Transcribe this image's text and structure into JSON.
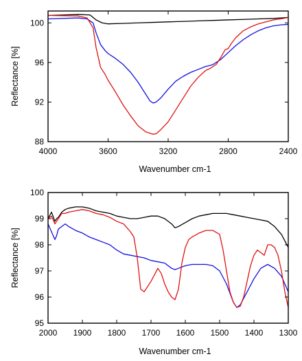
{
  "colors": {
    "black": "#000000",
    "blue": "#1010e0",
    "red": "#e01010"
  },
  "chart_data": [
    {
      "type": "line",
      "title": "",
      "xlabel": "Wavenumber cm-1",
      "ylabel": "Reflectance [%]",
      "xlim": [
        4000,
        2400
      ],
      "ylim": [
        88,
        101.2
      ],
      "x_reversed": true,
      "xticks": [
        4000,
        3600,
        3200,
        2800,
        2400
      ],
      "xtick_labels": [
        "4000",
        "3600",
        "3200",
        "2800",
        "2400"
      ],
      "yticks": [
        88,
        92,
        96,
        100
      ],
      "ytick_labels": [
        "88",
        "92",
        "96",
        "100"
      ],
      "grid": false,
      "legend": "none",
      "series": [
        {
          "color": "#000000",
          "x": [
            4000,
            3800,
            3720,
            3680,
            3640,
            3600,
            3500,
            3400,
            3300,
            3200,
            3100,
            3000,
            2900,
            2800,
            2700,
            2600,
            2500,
            2400
          ],
          "y": [
            100.75,
            100.85,
            100.8,
            100.3,
            100.0,
            99.9,
            99.95,
            100.0,
            100.05,
            100.1,
            100.15,
            100.2,
            100.25,
            100.3,
            100.35,
            100.4,
            100.45,
            100.55
          ]
        },
        {
          "color": "#1010e0",
          "x": [
            4000,
            3800,
            3740,
            3700,
            3680,
            3650,
            3620,
            3600,
            3550,
            3500,
            3450,
            3400,
            3350,
            3320,
            3300,
            3280,
            3250,
            3200,
            3150,
            3100,
            3050,
            3000,
            2950,
            2920,
            2900,
            2880,
            2850,
            2800,
            2750,
            2700,
            2650,
            2600,
            2550,
            2500,
            2450,
            2400
          ],
          "y": [
            100.4,
            100.5,
            100.4,
            100.0,
            99.0,
            97.8,
            97.2,
            96.9,
            96.4,
            95.8,
            95.0,
            94.0,
            92.8,
            92.1,
            91.9,
            92.0,
            92.4,
            93.3,
            94.1,
            94.6,
            95.0,
            95.3,
            95.6,
            95.7,
            95.8,
            96.0,
            96.3,
            97.0,
            97.7,
            98.3,
            98.8,
            99.2,
            99.5,
            99.7,
            99.8,
            99.85
          ]
        },
        {
          "color": "#e01010",
          "x": [
            4000,
            3800,
            3740,
            3700,
            3680,
            3650,
            3620,
            3600,
            3550,
            3500,
            3450,
            3400,
            3350,
            3300,
            3280,
            3250,
            3200,
            3150,
            3100,
            3050,
            3000,
            2950,
            2920,
            2900,
            2880,
            2850,
            2820,
            2800,
            2780,
            2750,
            2700,
            2650,
            2600,
            2550,
            2500,
            2450,
            2400
          ],
          "y": [
            100.75,
            100.7,
            100.5,
            99.5,
            97.5,
            95.5,
            94.8,
            94.2,
            93.0,
            91.7,
            90.6,
            89.6,
            89.0,
            88.75,
            88.8,
            89.2,
            90.0,
            91.2,
            92.4,
            93.6,
            94.5,
            95.2,
            95.4,
            95.6,
            95.8,
            96.5,
            97.3,
            97.4,
            97.9,
            98.5,
            99.2,
            99.6,
            99.9,
            100.1,
            100.3,
            100.4,
            100.55
          ]
        }
      ]
    },
    {
      "type": "line",
      "title": "",
      "xlabel": "Wavenumber cm-1",
      "ylabel": "Reflectance [%]",
      "xlim": [
        2000,
        1300
      ],
      "ylim": [
        95,
        100
      ],
      "x_reversed": true,
      "xticks": [
        2000,
        1900,
        1800,
        1700,
        1600,
        1500,
        1400,
        1300
      ],
      "xtick_labels": [
        "2000",
        "1900",
        "1800",
        "1700",
        "1600",
        "1500",
        "1400",
        "1300"
      ],
      "yticks": [
        95,
        96,
        97,
        98,
        99,
        100
      ],
      "ytick_labels": [
        "95",
        "96",
        "97",
        "98",
        "99",
        "100"
      ],
      "grid": false,
      "legend": "none",
      "series": [
        {
          "color": "#000000",
          "x": [
            2000,
            1990,
            1980,
            1975,
            1970,
            1960,
            1950,
            1940,
            1920,
            1900,
            1880,
            1860,
            1840,
            1820,
            1800,
            1780,
            1760,
            1740,
            1720,
            1700,
            1680,
            1660,
            1640,
            1630,
            1620,
            1600,
            1580,
            1560,
            1540,
            1520,
            1500,
            1480,
            1460,
            1440,
            1420,
            1400,
            1380,
            1360,
            1340,
            1320,
            1300
          ],
          "y": [
            99.0,
            99.25,
            98.9,
            99.0,
            99.05,
            99.25,
            99.35,
            99.4,
            99.45,
            99.45,
            99.4,
            99.3,
            99.25,
            99.2,
            99.1,
            99.05,
            99.0,
            99.0,
            99.05,
            99.1,
            99.1,
            99.0,
            98.8,
            98.65,
            98.7,
            98.85,
            99.0,
            99.1,
            99.15,
            99.2,
            99.2,
            99.2,
            99.15,
            99.1,
            99.05,
            99.0,
            98.95,
            98.9,
            98.7,
            98.4,
            97.9
          ]
        },
        {
          "color": "#1010e0",
          "x": [
            2000,
            1990,
            1980,
            1975,
            1970,
            1960,
            1950,
            1940,
            1920,
            1900,
            1880,
            1860,
            1840,
            1820,
            1800,
            1780,
            1760,
            1740,
            1720,
            1700,
            1680,
            1660,
            1640,
            1630,
            1620,
            1600,
            1580,
            1560,
            1540,
            1520,
            1500,
            1480,
            1460,
            1450,
            1440,
            1420,
            1400,
            1380,
            1360,
            1340,
            1320,
            1300
          ],
          "y": [
            98.8,
            98.5,
            98.2,
            98.35,
            98.6,
            98.7,
            98.8,
            98.7,
            98.55,
            98.45,
            98.3,
            98.2,
            98.1,
            98.0,
            97.8,
            97.65,
            97.6,
            97.55,
            97.5,
            97.4,
            97.35,
            97.3,
            97.1,
            97.05,
            97.1,
            97.2,
            97.25,
            97.25,
            97.25,
            97.2,
            97.0,
            96.5,
            95.8,
            95.6,
            95.7,
            96.2,
            96.7,
            97.1,
            97.25,
            97.1,
            96.8,
            96.2
          ]
        },
        {
          "color": "#e01010",
          "x": [
            2000,
            1990,
            1980,
            1975,
            1970,
            1960,
            1950,
            1940,
            1920,
            1900,
            1880,
            1860,
            1840,
            1820,
            1800,
            1780,
            1760,
            1750,
            1740,
            1730,
            1720,
            1700,
            1680,
            1670,
            1660,
            1650,
            1640,
            1630,
            1620,
            1610,
            1600,
            1590,
            1580,
            1560,
            1540,
            1520,
            1500,
            1490,
            1480,
            1470,
            1460,
            1450,
            1440,
            1430,
            1420,
            1410,
            1400,
            1390,
            1380,
            1370,
            1360,
            1350,
            1340,
            1330,
            1320,
            1310,
            1300
          ],
          "y": [
            99.0,
            99.1,
            98.8,
            98.9,
            99.0,
            99.2,
            99.2,
            99.25,
            99.3,
            99.35,
            99.3,
            99.2,
            99.15,
            99.05,
            98.9,
            98.8,
            98.5,
            98.3,
            97.5,
            96.3,
            96.2,
            96.6,
            97.1,
            96.9,
            96.5,
            96.2,
            96.0,
            95.9,
            96.3,
            97.3,
            97.9,
            98.2,
            98.3,
            98.45,
            98.55,
            98.55,
            98.4,
            97.8,
            97.0,
            96.2,
            95.8,
            95.6,
            95.65,
            96.0,
            96.6,
            97.2,
            97.6,
            97.8,
            97.7,
            97.6,
            98.0,
            98.0,
            97.9,
            97.6,
            97.0,
            96.2,
            95.6
          ]
        }
      ]
    }
  ]
}
